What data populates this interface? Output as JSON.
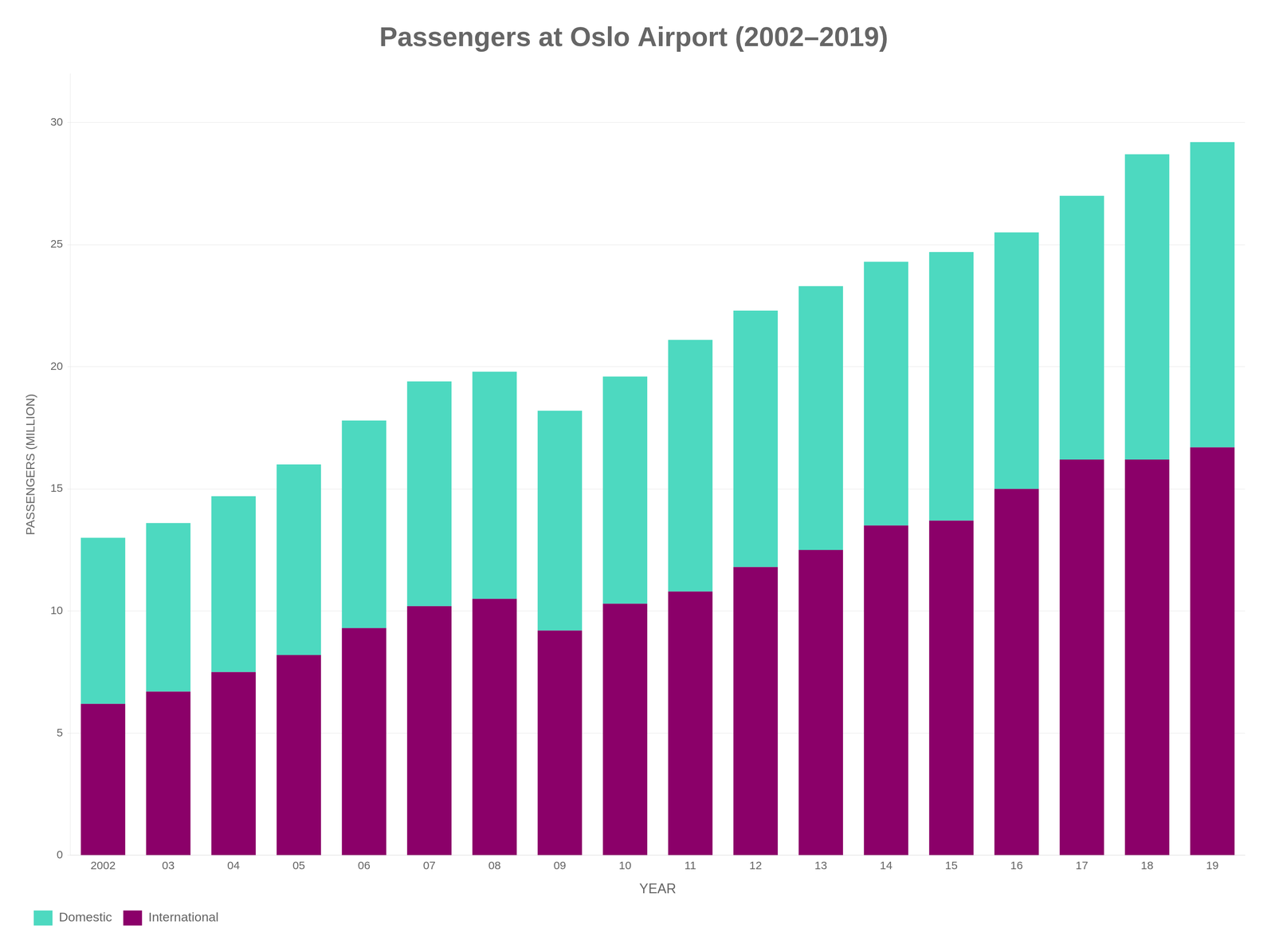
{
  "chart_data": {
    "type": "bar",
    "title": "Passengers at Oslo Airport (2002–2019)",
    "x_label": "YEAR",
    "y_label": "PASSENGERS (MILLION)",
    "categories": [
      "2002",
      "03",
      "04",
      "05",
      "06",
      "07",
      "08",
      "09",
      "10",
      "11",
      "12",
      "13",
      "14",
      "15",
      "16",
      "17",
      "18",
      "19"
    ],
    "series": [
      {
        "name": "International",
        "color": "#8B0069",
        "values": [
          6.2,
          6.7,
          7.5,
          8.2,
          9.3,
          10.2,
          10.5,
          9.2,
          10.3,
          10.8,
          11.8,
          12.5,
          13.5,
          13.7,
          15.0,
          16.2,
          16.2,
          16.7
        ]
      },
      {
        "name": "Domestic",
        "color": "#4DD9C0",
        "values": [
          6.8,
          6.9,
          7.2,
          7.8,
          8.5,
          9.2,
          9.3,
          9.0,
          9.3,
          10.3,
          10.5,
          10.8,
          10.8,
          11.0,
          10.5,
          10.8,
          12.5,
          12.5
        ]
      }
    ],
    "stacked": true,
    "ylim": [
      0,
      32
    ],
    "yticks": [
      0,
      5,
      10,
      15,
      20,
      25,
      30
    ],
    "grid": true,
    "legend": "bottom"
  }
}
